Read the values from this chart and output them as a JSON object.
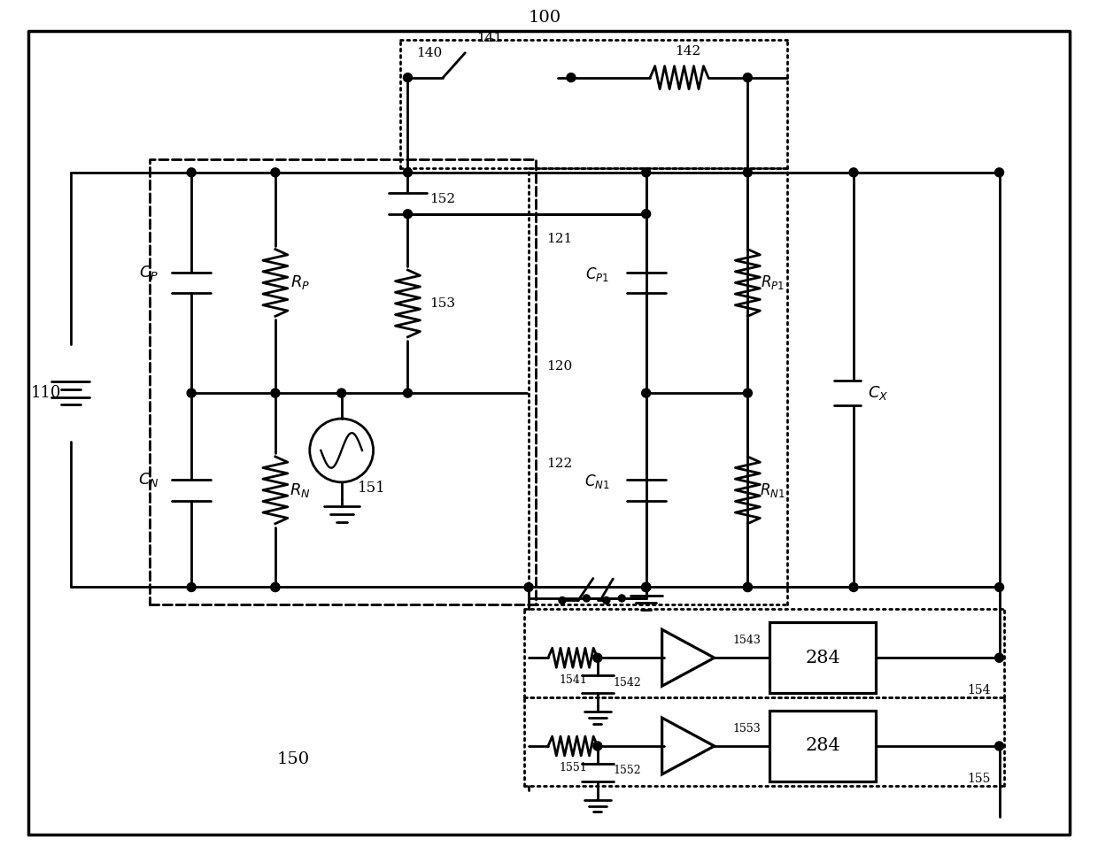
{
  "bg": "#ffffff",
  "lc": "#000000",
  "lw": 2.0,
  "fw": 12.4,
  "fh": 9.74,
  "dpi": 100
}
